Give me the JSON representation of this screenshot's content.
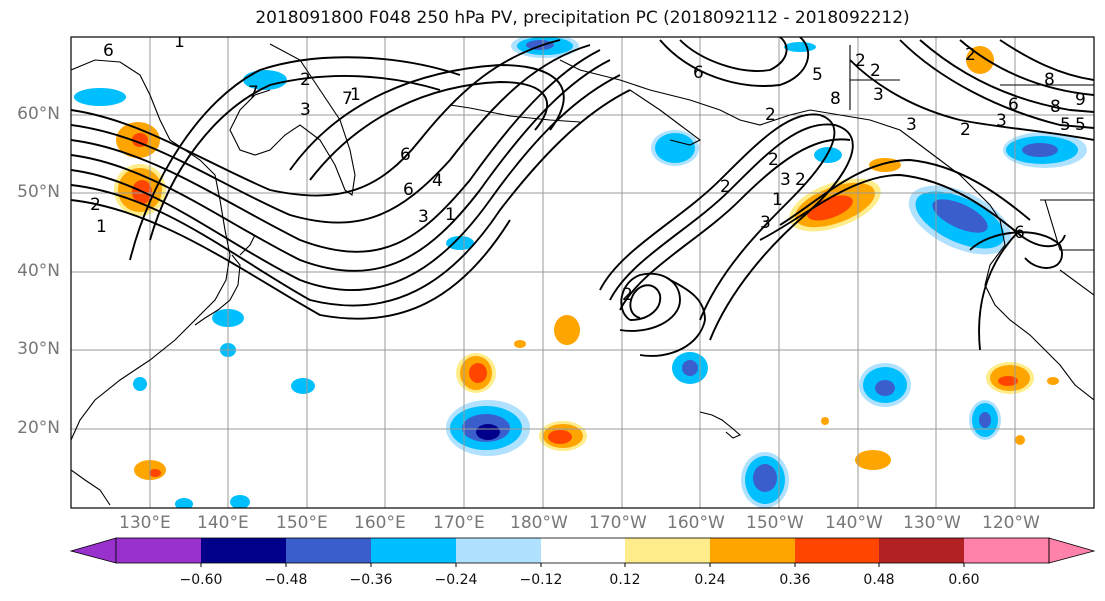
{
  "title": "2018091800 F048 250 hPa PV, precipitation PC (2018092112 - 2018092212)",
  "lat_labels": [
    "60°N",
    "50°N",
    "40°N",
    "30°N",
    "20°N"
  ],
  "lon_labels": [
    "130°E",
    "140°E",
    "150°E",
    "160°E",
    "170°E",
    "180°W",
    "170°W",
    "160°W",
    "150°W",
    "140°W",
    "130°W",
    "120°W"
  ],
  "colorbar": {
    "colors": [
      "#9932CC",
      "#00008B",
      "#3A5FCD",
      "#00BFFF",
      "#B0E2FF",
      "#FFFFFF",
      "#FFEC8B",
      "#FFA500",
      "#FF4500",
      "#B22222",
      "#FF82AB"
    ],
    "tick_labels": [
      "−0.60",
      "−0.48",
      "−0.36",
      "−0.24",
      "−0.12",
      "0.12",
      "0.24",
      "0.36",
      "0.48",
      "0.60"
    ]
  },
  "contour_labels": [
    "6",
    "1",
    "7",
    "2",
    "3",
    "7",
    "2",
    "1",
    "6",
    "4",
    "3",
    "1",
    "2",
    "2",
    "2",
    "6",
    "5",
    "8",
    "2",
    "3",
    "6",
    "8",
    "3",
    "2",
    "3",
    "2",
    "6",
    "5",
    "3",
    "2",
    "1",
    "2",
    "6",
    "3",
    "8",
    "5",
    "9",
    "1",
    "2"
  ]
}
